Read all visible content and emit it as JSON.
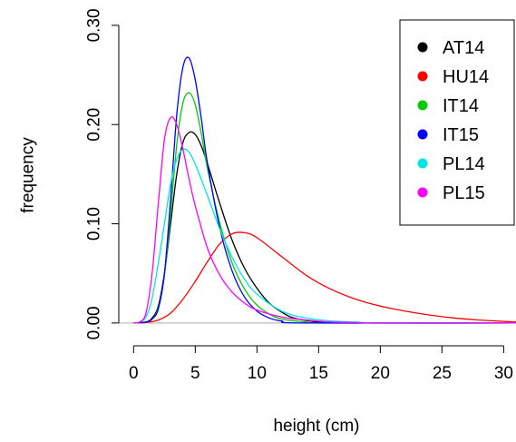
{
  "chart_data": {
    "type": "line",
    "xlabel": "height (cm)",
    "ylabel": "frequency",
    "xlim": [
      -1.2,
      31
    ],
    "ylim": [
      -0.012,
      0.31
    ],
    "x_ticks": [
      0,
      5,
      10,
      15,
      20,
      25,
      30
    ],
    "x_tick_labels": [
      "0",
      "5",
      "10",
      "15",
      "20",
      "25",
      "30"
    ],
    "y_ticks": [
      0.0,
      0.1,
      0.2,
      0.3
    ],
    "y_tick_labels": [
      "0.00",
      "0.10",
      "0.20",
      "0.30"
    ],
    "baseline": 0,
    "legend_position": "top-right",
    "series": [
      {
        "name": "AT14",
        "color": "#000000",
        "x": [
          0,
          1,
          1.5,
          2,
          2.5,
          3,
          3.5,
          4,
          4.5,
          5,
          5.5,
          6,
          7,
          8,
          9,
          10,
          11,
          12,
          13,
          15,
          18,
          31
        ],
        "y": [
          0,
          0.001,
          0.005,
          0.017,
          0.05,
          0.1,
          0.15,
          0.182,
          0.192,
          0.19,
          0.178,
          0.16,
          0.12,
          0.083,
          0.055,
          0.035,
          0.02,
          0.011,
          0.005,
          0.001,
          0,
          0
        ]
      },
      {
        "name": "HU14",
        "color": "#ff0000",
        "x": [
          0,
          1,
          2,
          3,
          4,
          5,
          6,
          7,
          8,
          9,
          10,
          12,
          14,
          16,
          18,
          20,
          22,
          24,
          26,
          28,
          31
        ],
        "y": [
          0,
          0.0005,
          0.003,
          0.01,
          0.024,
          0.042,
          0.062,
          0.08,
          0.09,
          0.091,
          0.086,
          0.067,
          0.048,
          0.034,
          0.024,
          0.017,
          0.012,
          0.008,
          0.005,
          0.003,
          0.001
        ]
      },
      {
        "name": "IT14",
        "color": "#00cc00",
        "x": [
          0,
          1,
          1.5,
          2,
          2.5,
          3,
          3.5,
          4,
          4.5,
          5,
          5.5,
          6,
          7,
          8,
          9,
          10,
          11,
          12,
          14,
          16,
          31
        ],
        "y": [
          0,
          0.001,
          0.004,
          0.015,
          0.048,
          0.11,
          0.18,
          0.222,
          0.232,
          0.22,
          0.19,
          0.155,
          0.1,
          0.06,
          0.034,
          0.018,
          0.009,
          0.004,
          0.001,
          0,
          0
        ]
      },
      {
        "name": "IT15",
        "color": "#0000ff",
        "x": [
          0,
          1,
          1.5,
          2,
          2.5,
          3,
          3.5,
          4,
          4.5,
          5,
          5.5,
          6,
          7,
          8,
          9,
          10,
          11,
          12,
          14,
          31
        ],
        "y": [
          0,
          0.001,
          0.004,
          0.014,
          0.05,
          0.125,
          0.21,
          0.258,
          0.267,
          0.245,
          0.205,
          0.16,
          0.095,
          0.052,
          0.026,
          0.012,
          0.005,
          0.002,
          0,
          0
        ]
      },
      {
        "name": "PL14",
        "color": "#00e5e5",
        "x": [
          0,
          0.5,
          1,
          1.5,
          2,
          2.5,
          3,
          3.5,
          4,
          4.5,
          5,
          6,
          7,
          8,
          9,
          10,
          12,
          14,
          16,
          18,
          20,
          31
        ],
        "y": [
          0,
          0.001,
          0.006,
          0.025,
          0.06,
          0.1,
          0.14,
          0.165,
          0.175,
          0.172,
          0.16,
          0.128,
          0.094,
          0.066,
          0.044,
          0.029,
          0.012,
          0.005,
          0.002,
          0.001,
          0,
          0
        ]
      },
      {
        "name": "PL15",
        "color": "#ff00ff",
        "x": [
          0,
          0.5,
          1,
          1.5,
          2,
          2.5,
          3,
          3.5,
          4,
          4.5,
          5,
          6,
          7,
          8,
          9,
          10,
          12,
          14,
          16,
          18,
          20,
          31
        ],
        "y": [
          0,
          0.001,
          0.01,
          0.05,
          0.12,
          0.185,
          0.207,
          0.2,
          0.175,
          0.145,
          0.118,
          0.075,
          0.048,
          0.031,
          0.02,
          0.013,
          0.006,
          0.003,
          0.001,
          0.0005,
          0,
          0
        ]
      }
    ]
  }
}
